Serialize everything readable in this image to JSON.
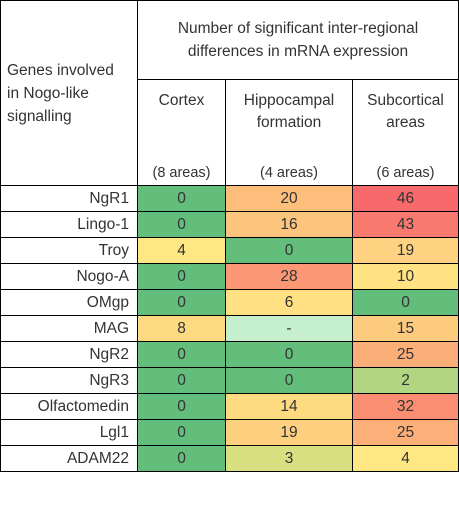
{
  "header": {
    "gene_col": [
      "Genes involved",
      "in Nogo-like",
      "signalling"
    ],
    "span_title": [
      "Number of significant inter-regional",
      "differences in mRNA expression"
    ],
    "regions": [
      {
        "label_lines": [
          "Cortex"
        ],
        "count": "(8 areas)"
      },
      {
        "label_lines": [
          "Hippocampal",
          "formation"
        ],
        "count": "(4 areas)"
      },
      {
        "label_lines": [
          "Subcortical",
          "areas"
        ],
        "count": "(6 areas)"
      }
    ]
  },
  "rows": [
    {
      "gene": "NgR1",
      "values": [
        "0",
        "20",
        "46"
      ],
      "colors": [
        "#63be7b",
        "#fdbe7b",
        "#f8696b"
      ]
    },
    {
      "gene": "Lingo-1",
      "values": [
        "0",
        "16",
        "43"
      ],
      "colors": [
        "#63be7b",
        "#fdc47d",
        "#f87a6f"
      ]
    },
    {
      "gene": "Troy",
      "values": [
        "4",
        "0",
        "19"
      ],
      "colors": [
        "#fee884",
        "#63be7b",
        "#fed280"
      ]
    },
    {
      "gene": "Nogo-A",
      "values": [
        "0",
        "28",
        "10"
      ],
      "colors": [
        "#63be7b",
        "#fb9774",
        "#ffe383"
      ]
    },
    {
      "gene": "OMgp",
      "values": [
        "0",
        "6",
        "0"
      ],
      "colors": [
        "#63be7b",
        "#ffe082",
        "#63be7b"
      ]
    },
    {
      "gene": "MAG",
      "values": [
        "8",
        "-",
        "15"
      ],
      "colors": [
        "#fdda80",
        "#c6efce",
        "#fdcb7e"
      ]
    },
    {
      "gene": "NgR2",
      "values": [
        "0",
        "0",
        "25"
      ],
      "colors": [
        "#63be7b",
        "#63be7b",
        "#fcae78"
      ]
    },
    {
      "gene": "NgR3",
      "values": [
        "0",
        "0",
        "2"
      ],
      "colors": [
        "#63be7b",
        "#63be7b",
        "#b1d580"
      ]
    },
    {
      "gene": "Olfactomedin",
      "values": [
        "0",
        "14",
        "32"
      ],
      "colors": [
        "#63be7b",
        "#fedb81",
        "#fa8e72"
      ]
    },
    {
      "gene": "Lgl1",
      "values": [
        "0",
        "19",
        "25"
      ],
      "colors": [
        "#63be7b",
        "#fecf7f",
        "#fcaf78"
      ]
    },
    {
      "gene": "ADAM22",
      "values": [
        "0",
        "3",
        "4"
      ],
      "colors": [
        "#63be7b",
        "#d8e081",
        "#fde884"
      ]
    }
  ]
}
